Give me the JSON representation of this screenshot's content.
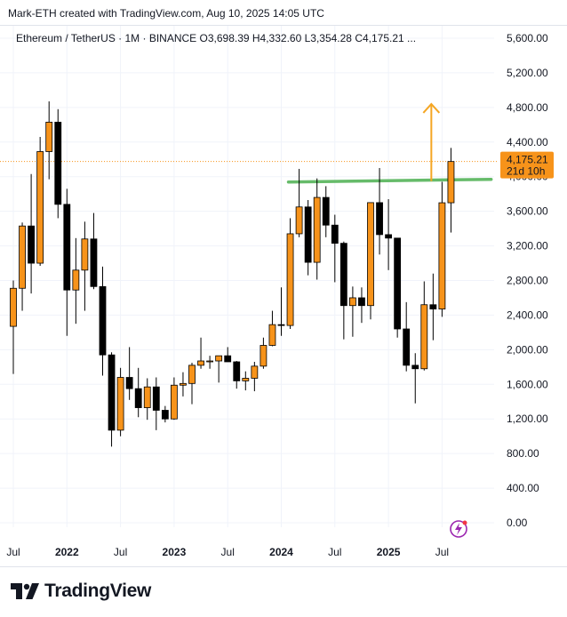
{
  "header": {
    "caption": "Mark-ETH created with TradingView.com, Aug 10, 2025 14:05 UTC"
  },
  "symbol_line": "Ethereum / TetherUS · 1M · BINANCE  O3,698.39  H4,332.60  L3,354.28  C4,175.21 ...",
  "price_tag": {
    "value": "4,175.21",
    "countdown": "21d 10h"
  },
  "footer": {
    "brand": "TradingView"
  },
  "colors": {
    "up": "#f7931a",
    "down": "#000000",
    "resistance": "#66bb6a",
    "arrow": "#f5a623",
    "price_tag_bg": "#f7931a",
    "last_price_line": "#f7931a",
    "indicator_icon": "#9c27b0"
  },
  "chart_data": {
    "type": "candlestick",
    "symbol": "Ethereum / TetherUS",
    "interval": "1M",
    "exchange": "BINANCE",
    "ylim": [
      0,
      5800
    ],
    "y_ticks": [
      0,
      400,
      800,
      1200,
      1600,
      2000,
      2400,
      2800,
      3200,
      3600,
      4000,
      4400,
      4800,
      5200,
      5600
    ],
    "y_tick_labels": [
      "0.00",
      "400.00",
      "800.00",
      "1,200.00",
      "1,600.00",
      "2,000.00",
      "2,400.00",
      "2,800.00",
      "3,200.00",
      "3,600.00",
      "4,000.00",
      "4,400.00",
      "4,800.00",
      "5,200.00",
      "5,600.00"
    ],
    "x_ticks": [
      {
        "label": "Jul",
        "index": 0
      },
      {
        "label": "2022",
        "index": 6
      },
      {
        "label": "Jul",
        "index": 12
      },
      {
        "label": "2023",
        "index": 18
      },
      {
        "label": "Jul",
        "index": 24
      },
      {
        "label": "2024",
        "index": 30
      },
      {
        "label": "Jul",
        "index": 36
      },
      {
        "label": "2025",
        "index": 42
      },
      {
        "label": "Jul",
        "index": 48
      }
    ],
    "candles": [
      {
        "t": "2021-07",
        "o": 2270,
        "h": 2800,
        "l": 1720,
        "c": 2710
      },
      {
        "t": "2021-08",
        "o": 2710,
        "h": 3470,
        "l": 2450,
        "c": 3430
      },
      {
        "t": "2021-09",
        "o": 3430,
        "h": 4030,
        "l": 2650,
        "c": 3000
      },
      {
        "t": "2021-10",
        "o": 3000,
        "h": 4460,
        "l": 2970,
        "c": 4290
      },
      {
        "t": "2021-11",
        "o": 4290,
        "h": 4870,
        "l": 3970,
        "c": 4630
      },
      {
        "t": "2021-12",
        "o": 4630,
        "h": 4780,
        "l": 3520,
        "c": 3680
      },
      {
        "t": "2022-01",
        "o": 3680,
        "h": 3860,
        "l": 2160,
        "c": 2690
      },
      {
        "t": "2022-02",
        "o": 2690,
        "h": 3290,
        "l": 2300,
        "c": 2920
      },
      {
        "t": "2022-03",
        "o": 2920,
        "h": 3480,
        "l": 2450,
        "c": 3280
      },
      {
        "t": "2022-04",
        "o": 3280,
        "h": 3580,
        "l": 2700,
        "c": 2730
      },
      {
        "t": "2022-05",
        "o": 2730,
        "h": 2960,
        "l": 1700,
        "c": 1940
      },
      {
        "t": "2022-06",
        "o": 1940,
        "h": 1970,
        "l": 880,
        "c": 1070
      },
      {
        "t": "2022-07",
        "o": 1070,
        "h": 1790,
        "l": 1000,
        "c": 1680
      },
      {
        "t": "2022-08",
        "o": 1680,
        "h": 2030,
        "l": 1420,
        "c": 1550
      },
      {
        "t": "2022-09",
        "o": 1550,
        "h": 1790,
        "l": 1220,
        "c": 1330
      },
      {
        "t": "2022-10",
        "o": 1330,
        "h": 1670,
        "l": 1190,
        "c": 1570
      },
      {
        "t": "2022-11",
        "o": 1570,
        "h": 1680,
        "l": 1070,
        "c": 1300
      },
      {
        "t": "2022-12",
        "o": 1300,
        "h": 1350,
        "l": 1160,
        "c": 1200
      },
      {
        "t": "2023-01",
        "o": 1200,
        "h": 1680,
        "l": 1190,
        "c": 1590
      },
      {
        "t": "2023-02",
        "o": 1590,
        "h": 1740,
        "l": 1460,
        "c": 1610
      },
      {
        "t": "2023-03",
        "o": 1610,
        "h": 1850,
        "l": 1370,
        "c": 1820
      },
      {
        "t": "2023-04",
        "o": 1820,
        "h": 2140,
        "l": 1780,
        "c": 1870
      },
      {
        "t": "2023-05",
        "o": 1870,
        "h": 1930,
        "l": 1780,
        "c": 1870
      },
      {
        "t": "2023-06",
        "o": 1870,
        "h": 1920,
        "l": 1620,
        "c": 1930
      },
      {
        "t": "2023-07",
        "o": 1930,
        "h": 2030,
        "l": 1860,
        "c": 1860
      },
      {
        "t": "2023-08",
        "o": 1860,
        "h": 1870,
        "l": 1550,
        "c": 1640
      },
      {
        "t": "2023-09",
        "o": 1640,
        "h": 1750,
        "l": 1530,
        "c": 1670
      },
      {
        "t": "2023-10",
        "o": 1670,
        "h": 1860,
        "l": 1520,
        "c": 1810
      },
      {
        "t": "2023-11",
        "o": 1810,
        "h": 2140,
        "l": 1780,
        "c": 2050
      },
      {
        "t": "2023-12",
        "o": 2050,
        "h": 2450,
        "l": 2040,
        "c": 2290
      },
      {
        "t": "2024-01",
        "o": 2290,
        "h": 2720,
        "l": 2160,
        "c": 2280
      },
      {
        "t": "2024-02",
        "o": 2280,
        "h": 3520,
        "l": 2240,
        "c": 3340
      },
      {
        "t": "2024-03",
        "o": 3340,
        "h": 4090,
        "l": 3300,
        "c": 3650
      },
      {
        "t": "2024-04",
        "o": 3650,
        "h": 3730,
        "l": 2860,
        "c": 3010
      },
      {
        "t": "2024-05",
        "o": 3010,
        "h": 3980,
        "l": 2810,
        "c": 3760
      },
      {
        "t": "2024-06",
        "o": 3760,
        "h": 3890,
        "l": 3300,
        "c": 3440
      },
      {
        "t": "2024-07",
        "o": 3440,
        "h": 3560,
        "l": 2780,
        "c": 3230
      },
      {
        "t": "2024-08",
        "o": 3230,
        "h": 3250,
        "l": 2120,
        "c": 2510
      },
      {
        "t": "2024-09",
        "o": 2510,
        "h": 2730,
        "l": 2150,
        "c": 2600
      },
      {
        "t": "2024-10",
        "o": 2600,
        "h": 2720,
        "l": 2310,
        "c": 2510
      },
      {
        "t": "2024-11",
        "o": 2510,
        "h": 3680,
        "l": 2350,
        "c": 3700
      },
      {
        "t": "2024-12",
        "o": 3700,
        "h": 4100,
        "l": 3100,
        "c": 3330
      },
      {
        "t": "2025-01",
        "o": 3330,
        "h": 3740,
        "l": 2920,
        "c": 3290
      },
      {
        "t": "2025-02",
        "o": 3290,
        "h": 3280,
        "l": 2140,
        "c": 2240
      },
      {
        "t": "2025-03",
        "o": 2240,
        "h": 2550,
        "l": 1750,
        "c": 1820
      },
      {
        "t": "2025-04",
        "o": 1820,
        "h": 1960,
        "l": 1380,
        "c": 1780
      },
      {
        "t": "2025-05",
        "o": 1780,
        "h": 2790,
        "l": 1760,
        "c": 2520
      },
      {
        "t": "2025-06",
        "o": 2520,
        "h": 2880,
        "l": 2110,
        "c": 2470
      },
      {
        "t": "2025-07",
        "o": 2470,
        "h": 3940,
        "l": 2380,
        "c": 3698.39
      },
      {
        "t": "2025-08",
        "o": 3698.39,
        "h": 4332.6,
        "l": 3354.28,
        "c": 4175.21
      }
    ],
    "last_price": 4175.21,
    "resistance_level": 4000
  }
}
